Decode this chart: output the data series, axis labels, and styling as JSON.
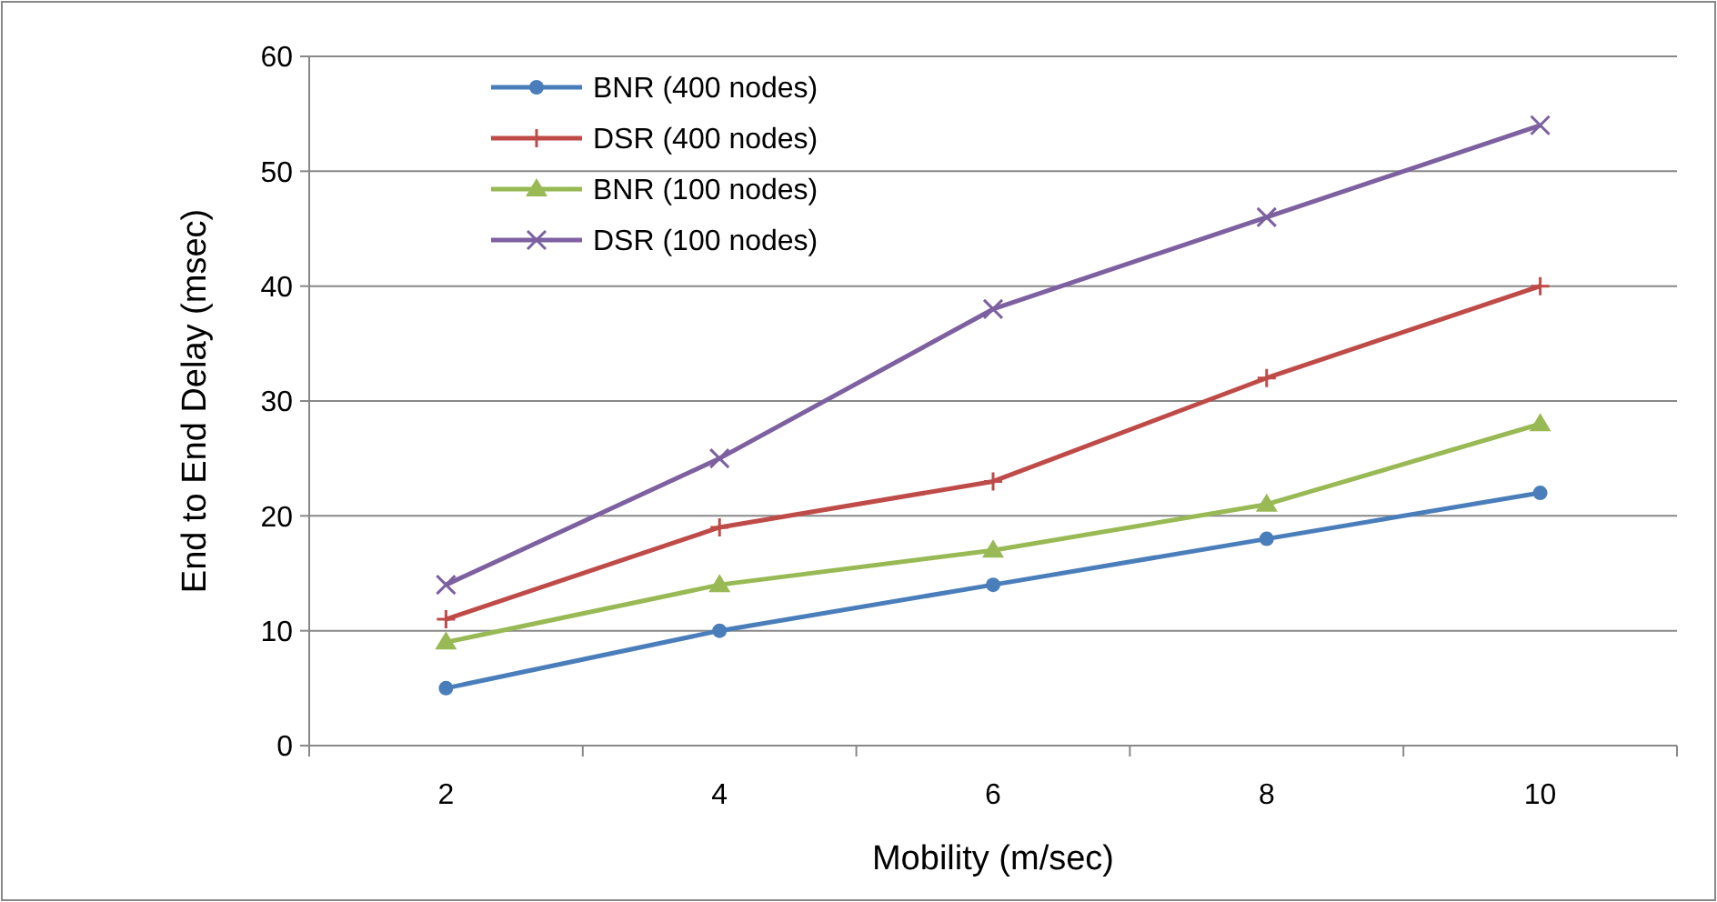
{
  "chart_data": {
    "type": "line",
    "xlabel": "Mobility (m/sec)",
    "ylabel": "End to End Delay (msec)",
    "categories": [
      "2",
      "4",
      "6",
      "8",
      "10"
    ],
    "series": [
      {
        "name": "BNR (400 nodes)",
        "color": "#4a7ebb",
        "marker": "circle",
        "values": [
          5,
          10,
          14,
          18,
          22
        ]
      },
      {
        "name": "DSR (400 nodes)",
        "color": "#be4b48",
        "marker": "plus",
        "values": [
          11,
          19,
          23,
          32,
          40
        ]
      },
      {
        "name": "BNR (100 nodes)",
        "color": "#98b954",
        "marker": "triangle",
        "values": [
          9,
          14,
          17,
          21,
          28
        ]
      },
      {
        "name": "DSR (100 nodes)",
        "color": "#7d60a0",
        "marker": "cross",
        "values": [
          14,
          25,
          38,
          46,
          54
        ]
      }
    ],
    "ylim": [
      0,
      60
    ],
    "yticks": [
      0,
      10,
      20,
      30,
      40,
      50,
      60
    ],
    "grid": "y",
    "legend": "top left"
  }
}
